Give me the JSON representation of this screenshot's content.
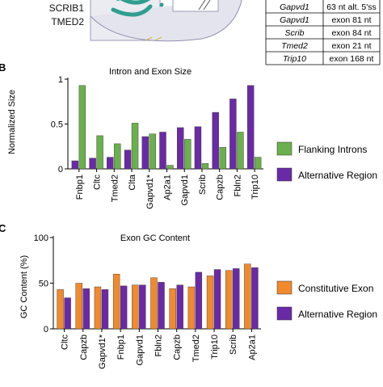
{
  "top": {
    "labels": [
      "SCRIB1",
      "TMED2"
    ],
    "table": [
      [
        "Gapvd1",
        "63 nt alt. 5'ss"
      ],
      [
        "Gapvd1",
        "exon 81 nt"
      ],
      [
        "Scrib",
        "exon 84 nt"
      ],
      [
        "Tmed2",
        "exon 21 nt"
      ],
      [
        "Trip10",
        "exon 168 nt"
      ]
    ]
  },
  "colors": {
    "green": "#6ab04c",
    "purple": "#6a2aa6",
    "orange": "#f08a2c",
    "axis": "#000000"
  },
  "panels": [
    {
      "letter": "B"
    },
    {
      "letter": "C"
    }
  ],
  "chart_data": [
    {
      "type": "bar",
      "title": "Intron and Exon Size",
      "ylabel": "Normalized Size",
      "xlabel": "",
      "categories": [
        "Fnbp1",
        "Cltc",
        "Tmed2",
        "Cltа",
        "Gapvd1*",
        "Ap2a1",
        "Gapvd1",
        "Scrib",
        "Capzb",
        "Fbln2",
        "Trip10"
      ],
      "series": [
        {
          "name": "Alternative Region",
          "values": [
            0.09,
            0.12,
            0.13,
            0.21,
            0.36,
            0.41,
            0.46,
            0.47,
            0.63,
            0.78,
            0.93
          ]
        },
        {
          "name": "Flanking Introns",
          "values": [
            0.93,
            0.37,
            0.28,
            0.51,
            0.39,
            0.04,
            0.33,
            0.06,
            0.24,
            0.41,
            0.13
          ]
        }
      ],
      "ylim": [
        0,
        1.0
      ],
      "yticks": [
        0,
        0.5,
        1
      ],
      "ytick_labels": [
        "0",
        "0.5",
        "1"
      ],
      "legend": [
        "Flanking Introns",
        "Alternative Region"
      ],
      "legend_position": "right",
      "grid": false
    },
    {
      "type": "bar",
      "title": "Exon GC Content",
      "ylabel": "GC Content (%)",
      "xlabel": "",
      "categories": [
        "Cltc",
        "Capzb",
        "Gapvd1*",
        "Fnbp1",
        "Gapvd1",
        "Fbln2",
        "Capzb",
        "Tmed2",
        "Trip10",
        "Scrib",
        "Ap2a1"
      ],
      "series": [
        {
          "name": "Constitutive Exon",
          "values": [
            43,
            50,
            46,
            60,
            48,
            56,
            44,
            46,
            58,
            64,
            71
          ]
        },
        {
          "name": "Alternative Region",
          "values": [
            34,
            44,
            43,
            47,
            48,
            51,
            48,
            62,
            65,
            66,
            67
          ]
        }
      ],
      "ylim": [
        0,
        100
      ],
      "yticks": [
        0,
        50,
        100
      ],
      "ytick_labels": [
        "0",
        "50",
        "100"
      ],
      "legend": [
        "Constitutive Exon",
        "Alternative Region"
      ],
      "legend_position": "right",
      "grid": false
    }
  ]
}
